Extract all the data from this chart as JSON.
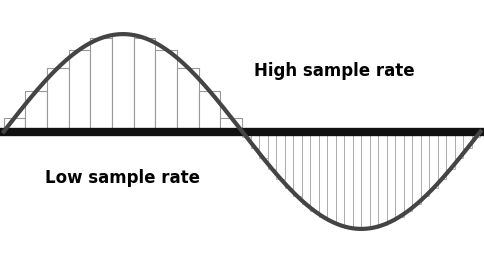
{
  "background_color": "#ffffff",
  "wave_color": "#444444",
  "wave_linewidth": 3.0,
  "baseline_color": "#111111",
  "baseline_linewidth": 6,
  "bar_edge_color": "#999999",
  "bar_face_color": "white",
  "bar_face_alpha": 1.0,
  "bar_linewidth_low": 0.8,
  "bar_linewidth_high": 0.5,
  "low_label": "Low sample rate",
  "high_label": "High sample rate",
  "label_fontsize": 12,
  "label_fontweight": "bold",
  "label_fontfamily": "sans-serif",
  "low_n_bars": 11,
  "high_n_bars": 28,
  "amplitude": 1.0,
  "x_start": 0.0,
  "x_end": 6.2832,
  "xlim_left": -0.05,
  "xlim_right": 6.33,
  "ylim_bottom": -1.35,
  "ylim_top": 1.35,
  "figsize": [
    4.84,
    2.63
  ],
  "dpi": 100
}
